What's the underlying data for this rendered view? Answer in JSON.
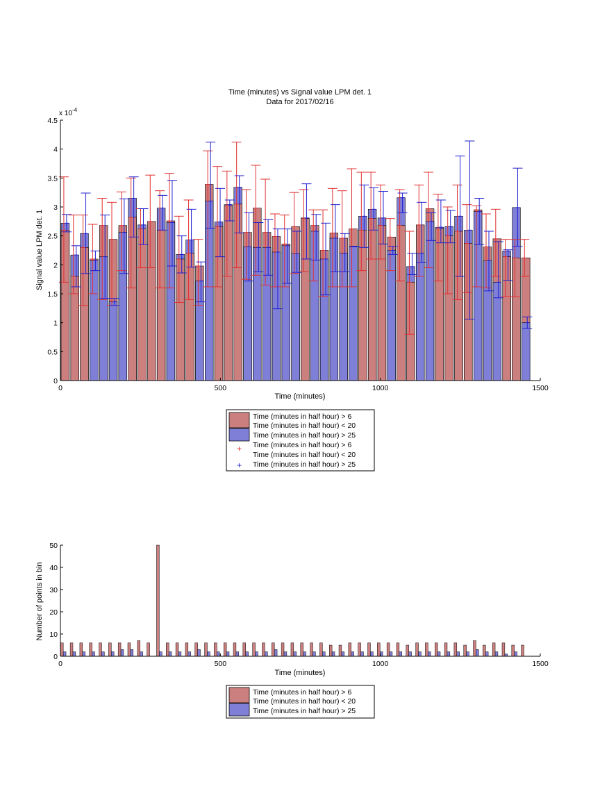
{
  "figure": {
    "title_line1": "Time (minutes) vs Signal value LPM det. 1",
    "title_line2": "Data for 2017/02/16"
  },
  "chart_data": [
    {
      "type": "bar",
      "title": "Time (minutes) vs Signal value LPM det. 1\nData for 2017/02/16",
      "xlabel": "Time (minutes)",
      "ylabel": "Signal value LPM det. 1",
      "y_exponent_label": "x 10",
      "y_exponent_power": "-4",
      "xlim": [
        0,
        1500
      ],
      "ylim": [
        0,
        4.5
      ],
      "x_ticks": [
        "0",
        "500",
        "1000",
        "1500"
      ],
      "y_ticks": [
        "0",
        "0.5",
        "1",
        "1.5",
        "2",
        "2.5",
        "3",
        "3.5",
        "4",
        "4.5"
      ],
      "y_scale_note": "values in units of 1e-4",
      "grid": false,
      "legend_position": "below",
      "colors": {
        "red_series": "#cc7f7f",
        "blue_series": "#7f7fd8",
        "red_error": "#e03030",
        "blue_error": "#1f1fd0"
      },
      "legend": [
        {
          "label_line1": "Time (minutes in half hour) > 6",
          "label_line2": "Time (minutes in half hour) < 20",
          "marker": "bar",
          "color": "#cc7f7f"
        },
        {
          "label_line1": "Time (minutes in half hour) > 25",
          "label_line2": "",
          "marker": "bar",
          "color": "#7f7fd8"
        },
        {
          "label_line1": "Time (minutes in half hour) > 6",
          "label_line2": "Time (minutes in half hour) < 20",
          "marker": "+",
          "color": "#e03030"
        },
        {
          "label_line1": "Time (minutes in half hour) > 25",
          "label_line2": "",
          "marker": "+",
          "color": "#1f1fd0"
        }
      ],
      "x": [
        0,
        30,
        60,
        90,
        120,
        150,
        180,
        210,
        240,
        270,
        300,
        330,
        360,
        390,
        420,
        450,
        480,
        510,
        540,
        570,
        600,
        630,
        660,
        690,
        720,
        750,
        780,
        810,
        840,
        870,
        900,
        930,
        960,
        990,
        1020,
        1050,
        1080,
        1110,
        1140,
        1170,
        1200,
        1230,
        1260,
        1290,
        1320,
        1350,
        1380,
        1410,
        1440
      ],
      "series": [
        {
          "name": "Time (minutes in half hour) > 6 Time (minutes in half hour) < 20",
          "values": [
            2.6,
            1.8,
            2.3,
            2.1,
            2.68,
            2.44,
            2.68,
            2.82,
            2.62,
            2.75,
            2.6,
            2.76,
            2.1,
            2.2,
            1.98,
            3.39,
            2.66,
            3.02,
            3.05,
            2.56,
            2.98,
            2.56,
            2.49,
            2.36,
            2.66,
            2.8,
            2.68,
            2.25,
            2.55,
            2.46,
            2.62,
            2.6,
            2.8,
            2.68,
            2.48,
            2.68,
            1.7,
            2.69,
            2.97,
            2.62,
            2.5,
            2.58,
            2.37,
            2.95,
            2.31,
            2.45,
            2.14,
            2.12,
            2.12
          ],
          "err_low": [
            1.7,
            1.5,
            1.3,
            1.5,
            1.4,
            1.3,
            1.9,
            1.6,
            1.95,
            1.95,
            1.6,
            1.6,
            1.35,
            1.4,
            1.3,
            1.62,
            1.62,
            1.8,
            1.95,
            1.75,
            1.82,
            1.65,
            1.62,
            1.62,
            1.85,
            1.88,
            1.72,
            1.45,
            1.62,
            1.62,
            1.62,
            1.9,
            2.1,
            2.1,
            1.9,
            1.72,
            0.8,
            1.8,
            1.95,
            1.72,
            1.5,
            1.4,
            1.52,
            1.62,
            1.6,
            1.8,
            1.45,
            1.45,
            1.8
          ],
          "err_high": [
            3.52,
            2.86,
            2.86,
            2.7,
            3.15,
            3.08,
            3.26,
            3.5,
            2.97,
            3.55,
            3.28,
            3.58,
            2.84,
            3.12,
            2.44,
            3.97,
            3.7,
            3.62,
            4.12,
            3.3,
            3.72,
            3.48,
            2.88,
            2.86,
            3.25,
            3.3,
            2.95,
            2.95,
            3.32,
            3.28,
            3.66,
            3.6,
            3.6,
            3.38,
            2.8,
            3.3,
            2.58,
            3.38,
            3.6,
            3.22,
            3.0,
            3.38,
            3.04,
            3.02,
            2.88,
            2.96,
            2.44,
            2.44,
            2.44
          ]
        },
        {
          "name": "Time (minutes in half hour) > 25",
          "values": [
            2.72,
            2.17,
            2.54,
            2.07,
            2.14,
            1.36,
            2.56,
            3.15,
            2.69,
            0,
            2.98,
            2.73,
            2.18,
            2.43,
            1.72,
            3.1,
            2.74,
            3.04,
            3.34,
            2.31,
            2.3,
            2.3,
            2.22,
            2.33,
            2.19,
            2.81,
            2.58,
            2.1,
            2.46,
            2.2,
            2.31,
            2.84,
            2.96,
            2.81,
            2.25,
            3.16,
            1.97,
            2.2,
            2.75,
            2.65,
            2.66,
            2.84,
            2.6,
            2.92,
            2.07,
            1.7,
            2.24,
            2.99,
            1.0
          ],
          "err_low": [
            2.57,
            1.62,
            1.85,
            1.9,
            1.42,
            1.3,
            1.85,
            2.48,
            2.35,
            0,
            2.6,
            1.98,
            1.86,
            1.96,
            1.36,
            2.63,
            2.14,
            2.76,
            2.55,
            1.72,
            1.88,
            1.82,
            1.24,
            1.68,
            1.87,
            2.1,
            2.08,
            1.48,
            1.88,
            1.88,
            2.32,
            2.3,
            2.6,
            2.36,
            2.18,
            2.9,
            1.83,
            2.04,
            2.42,
            2.38,
            2.38,
            1.8,
            1.06,
            2.35,
            1.55,
            1.43,
            1.73,
            2.32,
            0.9
          ],
          "err_high": [
            2.87,
            2.33,
            3.24,
            2.24,
            2.86,
            1.42,
            3.14,
            3.52,
            2.97,
            0,
            3.2,
            3.46,
            2.5,
            2.96,
            2.05,
            4.12,
            3.32,
            3.12,
            3.54,
            2.9,
            2.73,
            2.78,
            2.62,
            2.62,
            2.58,
            3.4,
            2.87,
            2.72,
            3.04,
            2.54,
            2.32,
            3.38,
            3.33,
            3.27,
            2.32,
            3.24,
            2.2,
            3.08,
            2.9,
            3.12,
            2.94,
            3.88,
            4.14,
            3.15,
            2.58,
            2.4,
            2.26,
            3.67,
            1.1
          ]
        }
      ]
    },
    {
      "type": "bar",
      "title": "",
      "xlabel": "Time (minutes)",
      "ylabel": "Number of points in bin",
      "xlim": [
        0,
        1500
      ],
      "ylim": [
        0,
        50
      ],
      "x_ticks": [
        "0",
        "500",
        "1000",
        "1500"
      ],
      "y_ticks": [
        "0",
        "10",
        "20",
        "30",
        "40",
        "50"
      ],
      "grid": false,
      "legend_position": "below",
      "legend": [
        {
          "label_line1": "Time (minutes in half hour) > 6",
          "label_line2": "Time (minutes in half hour) < 20",
          "marker": "bar",
          "color": "#cc7f7f"
        },
        {
          "label_line1": "Time (minutes in half hour) > 25",
          "label_line2": "",
          "marker": "bar",
          "color": "#7f7fd8"
        }
      ],
      "x": [
        0,
        30,
        60,
        90,
        120,
        150,
        180,
        210,
        240,
        270,
        300,
        330,
        360,
        390,
        420,
        450,
        480,
        510,
        540,
        570,
        600,
        630,
        660,
        690,
        720,
        750,
        780,
        810,
        840,
        870,
        900,
        930,
        960,
        990,
        1020,
        1050,
        1080,
        1110,
        1140,
        1170,
        1200,
        1230,
        1260,
        1290,
        1320,
        1350,
        1380,
        1410,
        1440
      ],
      "series": [
        {
          "name": "Time (minutes in half hour) > 6 Time (minutes in half hour) < 20",
          "values": [
            6,
            6,
            6,
            6,
            6,
            6,
            6,
            6,
            7,
            6,
            50,
            6,
            6,
            6,
            6,
            6,
            6,
            6,
            6,
            6,
            6,
            6,
            6,
            6,
            6,
            6,
            6,
            6,
            5,
            5,
            6,
            6,
            6,
            6,
            6,
            6,
            5,
            6,
            6,
            6,
            6,
            6,
            5,
            7,
            5,
            6,
            6,
            5,
            5
          ]
        },
        {
          "name": "Time (minutes in half hour) > 25",
          "values": [
            2,
            2,
            2,
            2,
            2,
            2,
            3,
            3,
            2,
            0,
            2,
            2,
            2,
            2,
            3,
            2,
            2,
            2,
            2,
            2,
            2,
            2,
            3,
            2,
            2,
            2,
            2,
            2,
            2,
            2,
            2,
            2,
            2,
            2,
            2,
            2,
            2,
            2,
            2,
            2,
            2,
            2,
            2,
            3,
            2,
            2,
            1,
            2,
            0
          ]
        }
      ]
    }
  ]
}
